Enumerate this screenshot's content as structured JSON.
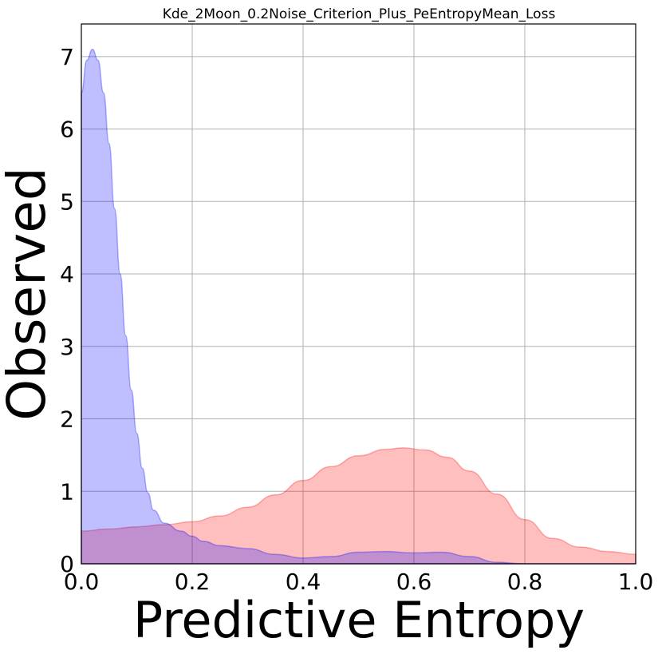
{
  "chart_data": {
    "type": "area",
    "title": "Kde_2Moon_0.2Noise_Criterion_Plus_PeEntropyMean_Loss",
    "xlabel": "Predictive Entropy",
    "ylabel": "Observed",
    "xlim": [
      0.0,
      1.0
    ],
    "ylim": [
      0,
      7.45
    ],
    "xticks": [
      "0.0",
      "0.2",
      "0.4",
      "0.6",
      "0.8",
      "1.0"
    ],
    "yticks": [
      "0",
      "1",
      "2",
      "3",
      "4",
      "5",
      "6",
      "7"
    ],
    "grid": true,
    "series": [
      {
        "color": "#ff0000",
        "opacity": 0.25,
        "points": [
          [
            0.0,
            0.45
          ],
          [
            0.05,
            0.48
          ],
          [
            0.1,
            0.51
          ],
          [
            0.15,
            0.54
          ],
          [
            0.2,
            0.58
          ],
          [
            0.25,
            0.66
          ],
          [
            0.3,
            0.78
          ],
          [
            0.35,
            0.95
          ],
          [
            0.4,
            1.15
          ],
          [
            0.45,
            1.34
          ],
          [
            0.5,
            1.49
          ],
          [
            0.55,
            1.58
          ],
          [
            0.58,
            1.6
          ],
          [
            0.62,
            1.57
          ],
          [
            0.66,
            1.47
          ],
          [
            0.7,
            1.28
          ],
          [
            0.75,
            0.96
          ],
          [
            0.8,
            0.61
          ],
          [
            0.85,
            0.35
          ],
          [
            0.9,
            0.23
          ],
          [
            0.95,
            0.17
          ],
          [
            1.0,
            0.13
          ]
        ]
      },
      {
        "color": "#0000ff",
        "opacity": 0.25,
        "points": [
          [
            0.0,
            6.5
          ],
          [
            0.01,
            6.95
          ],
          [
            0.02,
            7.1
          ],
          [
            0.03,
            6.95
          ],
          [
            0.04,
            6.5
          ],
          [
            0.05,
            5.8
          ],
          [
            0.06,
            4.9
          ],
          [
            0.07,
            4.0
          ],
          [
            0.08,
            3.15
          ],
          [
            0.09,
            2.4
          ],
          [
            0.1,
            1.8
          ],
          [
            0.11,
            1.32
          ],
          [
            0.12,
            0.98
          ],
          [
            0.13,
            0.74
          ],
          [
            0.15,
            0.56
          ],
          [
            0.18,
            0.45
          ],
          [
            0.2,
            0.38
          ],
          [
            0.22,
            0.31
          ],
          [
            0.25,
            0.25
          ],
          [
            0.3,
            0.21
          ],
          [
            0.35,
            0.13
          ],
          [
            0.4,
            0.08
          ],
          [
            0.45,
            0.1
          ],
          [
            0.5,
            0.16
          ],
          [
            0.55,
            0.17
          ],
          [
            0.6,
            0.15
          ],
          [
            0.65,
            0.16
          ],
          [
            0.7,
            0.1
          ],
          [
            0.75,
            0.02
          ],
          [
            0.8,
            0.0
          ],
          [
            1.0,
            0.0
          ]
        ]
      }
    ]
  }
}
